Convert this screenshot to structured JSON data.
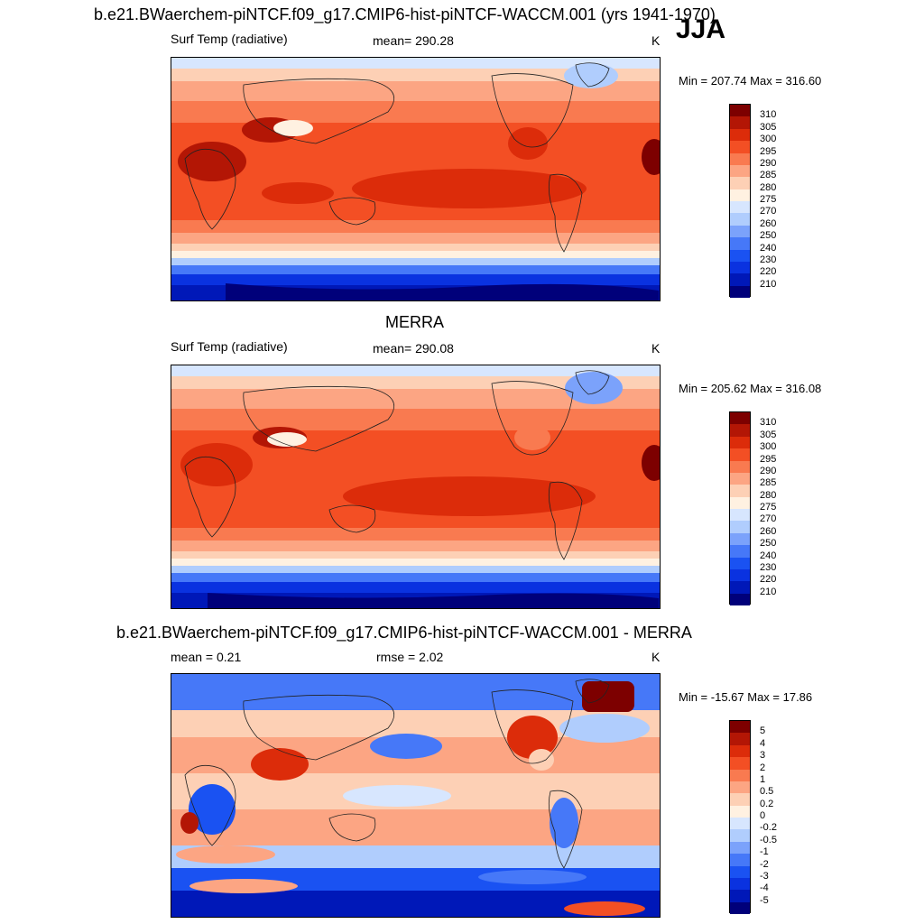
{
  "season": "JJA",
  "panels": [
    {
      "title": "b.e21.BWaerchem-piNTCF.f09_g17.CMIP6-hist-piNTCF-WACCM.001 (yrs 1941-1970)",
      "left_label": "Surf Temp (radiative)",
      "center_label": "mean= 290.28",
      "units": "K",
      "minmax": "Min = 207.74 Max = 316.60",
      "colorbar_labels": [
        "310",
        "305",
        "300",
        "295",
        "290",
        "285",
        "280",
        "275",
        "270",
        "260",
        "250",
        "240",
        "230",
        "220",
        "210"
      ],
      "colors": [
        "#00007a",
        "#0018b8",
        "#0a32e0",
        "#1a52f2",
        "#4678f8",
        "#7ba2fb",
        "#b0cdfd",
        "#d7e6fe",
        "#fff1e1",
        "#fdd0b5",
        "#fca583",
        "#f97a50",
        "#f34f24",
        "#dc2c0a",
        "#b31605",
        "#7d0000"
      ]
    },
    {
      "title": "MERRA",
      "left_label": "Surf Temp (radiative)",
      "center_label": "mean= 290.08",
      "units": "K",
      "minmax": "Min = 205.62 Max = 316.08",
      "colorbar_labels": [
        "310",
        "305",
        "300",
        "295",
        "290",
        "285",
        "280",
        "275",
        "270",
        "260",
        "250",
        "240",
        "230",
        "220",
        "210"
      ],
      "colors": [
        "#00007a",
        "#0018b8",
        "#0a32e0",
        "#1a52f2",
        "#4678f8",
        "#7ba2fb",
        "#b0cdfd",
        "#d7e6fe",
        "#fff1e1",
        "#fdd0b5",
        "#fca583",
        "#f97a50",
        "#f34f24",
        "#dc2c0a",
        "#b31605",
        "#7d0000"
      ]
    },
    {
      "title": "b.e21.BWaerchem-piNTCF.f09_g17.CMIP6-hist-piNTCF-WACCM.001 - MERRA",
      "left_label": "mean =   0.21",
      "center_label": "rmse =   2.02",
      "units": "K",
      "minmax": "Min = -15.67 Max =  17.86",
      "colorbar_labels": [
        "5",
        "4",
        "3",
        "2",
        "1",
        "0.5",
        "0.2",
        "0",
        "-0.2",
        "-0.5",
        "-1",
        "-2",
        "-3",
        "-4",
        "-5"
      ],
      "colors": [
        "#00007a",
        "#0018b8",
        "#0a32e0",
        "#1a52f2",
        "#4678f8",
        "#7ba2fb",
        "#b0cdfd",
        "#d7e6fe",
        "#fff1e1",
        "#fdd0b5",
        "#fca583",
        "#f97a50",
        "#f34f24",
        "#dc2c0a",
        "#b31605",
        "#7d0000"
      ]
    }
  ]
}
